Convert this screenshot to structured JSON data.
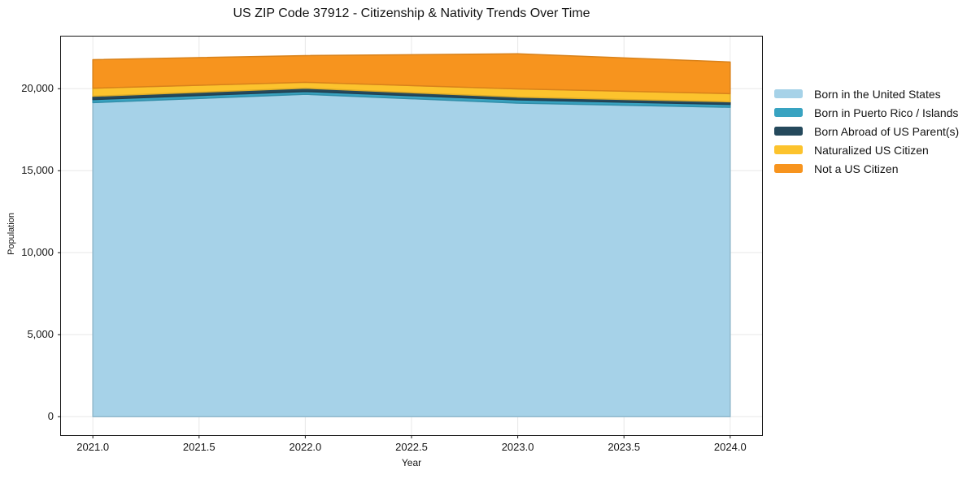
{
  "chart_data": {
    "type": "area",
    "stacked": true,
    "title": "US ZIP Code 37912 - Citizenship & Nativity Trends Over Time",
    "xlabel": "Year",
    "ylabel": "Population",
    "x": [
      2021,
      2022,
      2023,
      2024
    ],
    "series": [
      {
        "name": "Born in the United States",
        "color": "#A6D2E8",
        "values": [
          19150,
          19660,
          19120,
          18870
        ]
      },
      {
        "name": "Born in Puerto Rico / Islands",
        "color": "#38A3C1",
        "values": [
          190,
          170,
          200,
          170
        ]
      },
      {
        "name": "Born Abroad of US Parent(s)",
        "color": "#25495C",
        "values": [
          200,
          200,
          170,
          165
        ]
      },
      {
        "name": "Naturalized US Citizen",
        "color": "#FCC32D",
        "values": [
          490,
          360,
          500,
          495
        ]
      },
      {
        "name": "Not a US Citizen",
        "color": "#F7941E",
        "values": [
          1740,
          1630,
          2140,
          1930
        ]
      }
    ],
    "xticks": [
      2021.0,
      2021.5,
      2022.0,
      2022.5,
      2023.0,
      2023.5,
      2024.0
    ],
    "xtick_labels": [
      "2021.0",
      "2021.5",
      "2022.0",
      "2022.5",
      "2023.0",
      "2023.5",
      "2024.0"
    ],
    "yticks": [
      0,
      5000,
      10000,
      15000,
      20000
    ],
    "ytick_labels": [
      "0",
      "5,000",
      "10,000",
      "15,000",
      "20,000"
    ],
    "xlim": [
      2020.85,
      2024.15
    ],
    "ylim": [
      -1124,
      23181
    ],
    "grid": true,
    "grid_color": "#E8E8E8",
    "spine_color": "#141414",
    "legend_position": "right of plot, no frame"
  }
}
